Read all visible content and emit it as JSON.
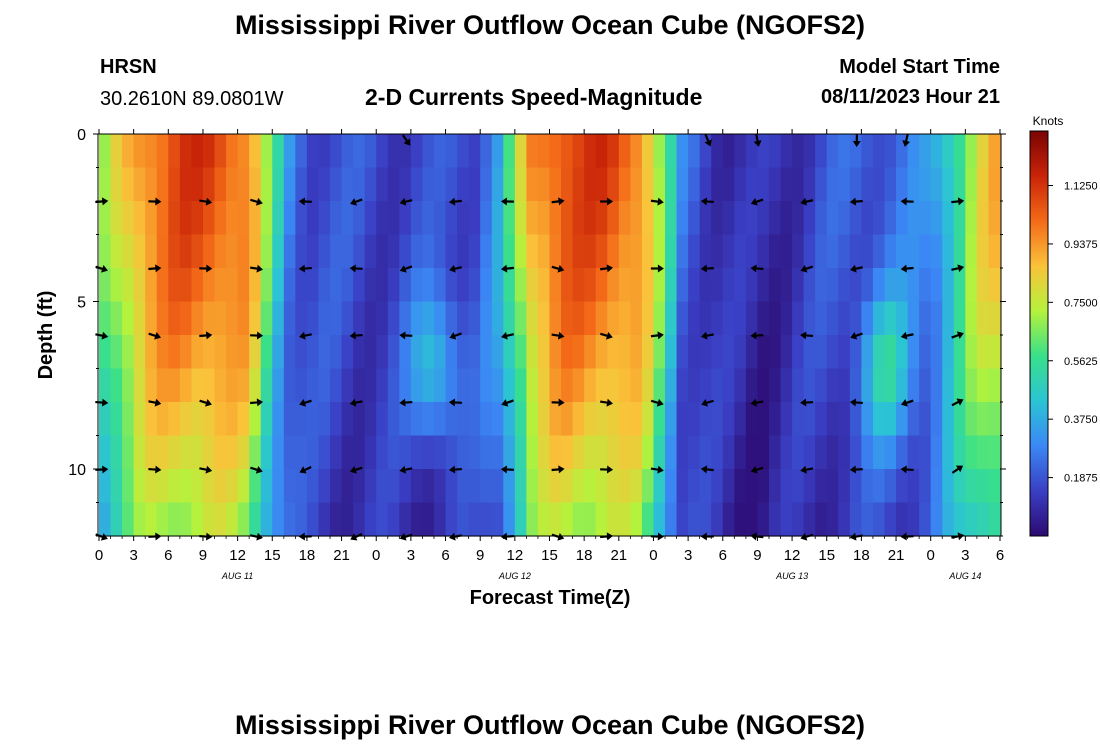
{
  "header": {
    "title": "Mississippi River Outflow Ocean Cube (NGOFS2)",
    "station_code": "HRSN",
    "station_coords": "30.2610N  89.0801W",
    "subtitle": "2-D Currents Speed-Magnitude",
    "model_start_label": "Model Start Time",
    "model_start_value": "08/11/2023 Hour 21"
  },
  "footer": {
    "title": "Mississippi River Outflow Ocean Cube (NGOFS2)"
  },
  "chart_data": {
    "type": "heatmap",
    "title": "2-D Currents Speed-Magnitude",
    "xlabel": "Forecast Time(Z)",
    "ylabel": "Depth (ft)",
    "x_tick_labels": [
      "0",
      "3",
      "6",
      "9",
      "12",
      "15",
      "18",
      "21",
      "0",
      "3",
      "6",
      "9",
      "12",
      "15",
      "18",
      "21",
      "0",
      "3",
      "6",
      "9",
      "12",
      "15",
      "18",
      "21",
      "0",
      "3",
      "6"
    ],
    "date_labels": [
      {
        "label": "AUG 11",
        "tick_index": 4
      },
      {
        "label": "AUG 12",
        "tick_index": 12
      },
      {
        "label": "AUG 13",
        "tick_index": 20
      },
      {
        "label": "AUG 14",
        "tick_index": 25
      }
    ],
    "x_range_hours": [
      0,
      78
    ],
    "y_ticks": [
      0,
      5,
      10
    ],
    "y_range_ft": [
      0,
      12
    ],
    "colorbar": {
      "label": "Knots",
      "ticks": [
        "1.1250",
        "0.9375",
        "0.7500",
        "0.5625",
        "0.3750",
        "0.1875"
      ],
      "tick_values": [
        1.125,
        0.9375,
        0.75,
        0.5625,
        0.375,
        0.1875
      ],
      "range": [
        0,
        1.3
      ],
      "colors": [
        "#2c0a70",
        "#3a3fc4",
        "#3b87f5",
        "#2bc4d4",
        "#38e08a",
        "#b5f23c",
        "#fac23a",
        "#f46a18",
        "#c92408",
        "#7a0403"
      ]
    },
    "speed_surface_profile": [
      {
        "hour": 0,
        "knots": 0.6
      },
      {
        "hour": 2,
        "knots": 0.82
      },
      {
        "hour": 4,
        "knots": 1.0
      },
      {
        "hour": 7,
        "knots": 1.1
      },
      {
        "hour": 10,
        "knots": 1.1
      },
      {
        "hour": 13,
        "knots": 1.0
      },
      {
        "hour": 15,
        "knots": 0.55
      },
      {
        "hour": 16.5,
        "knots": 0.3
      },
      {
        "hour": 18,
        "knots": 0.2
      },
      {
        "hour": 22,
        "knots": 0.17
      },
      {
        "hour": 26,
        "knots": 0.16
      },
      {
        "hour": 29,
        "knots": 0.15
      },
      {
        "hour": 31,
        "knots": 0.18
      },
      {
        "hour": 32.5,
        "knots": 0.2
      },
      {
        "hour": 34.5,
        "knots": 0.35
      },
      {
        "hour": 36,
        "knots": 0.65
      },
      {
        "hour": 37.5,
        "knots": 0.95
      },
      {
        "hour": 40,
        "knots": 1.1
      },
      {
        "hour": 44,
        "knots": 1.1
      },
      {
        "hour": 47,
        "knots": 1.0
      },
      {
        "hour": 49,
        "knots": 0.6
      },
      {
        "hour": 50.5,
        "knots": 0.25
      },
      {
        "hour": 54,
        "knots": 0.12
      },
      {
        "hour": 57,
        "knots": 0.08
      },
      {
        "hour": 60,
        "knots": 0.13
      },
      {
        "hour": 63,
        "knots": 0.18
      },
      {
        "hour": 65,
        "knots": 0.2
      },
      {
        "hour": 67,
        "knots": 0.22
      },
      {
        "hour": 70,
        "knots": 0.25
      },
      {
        "hour": 72,
        "knots": 0.3
      },
      {
        "hour": 74,
        "knots": 0.55
      },
      {
        "hour": 76,
        "knots": 0.8
      },
      {
        "hour": 78,
        "knots": 0.9
      }
    ],
    "slack_bulge_hours": [
      29,
      68
    ],
    "vectors": {
      "depths_ft": [
        2,
        4,
        6,
        8,
        10,
        12
      ],
      "hours": [
        0.2,
        4.8,
        9.2,
        13.6,
        17.9,
        22.3,
        26.6,
        30.9,
        35.4,
        39.7,
        43.9,
        48.3,
        52.7,
        57,
        61.3,
        65.6,
        70,
        74.3
      ],
      "surface_hours": [
        26.6,
        52.7,
        57,
        65.6,
        69.9
      ]
    }
  }
}
